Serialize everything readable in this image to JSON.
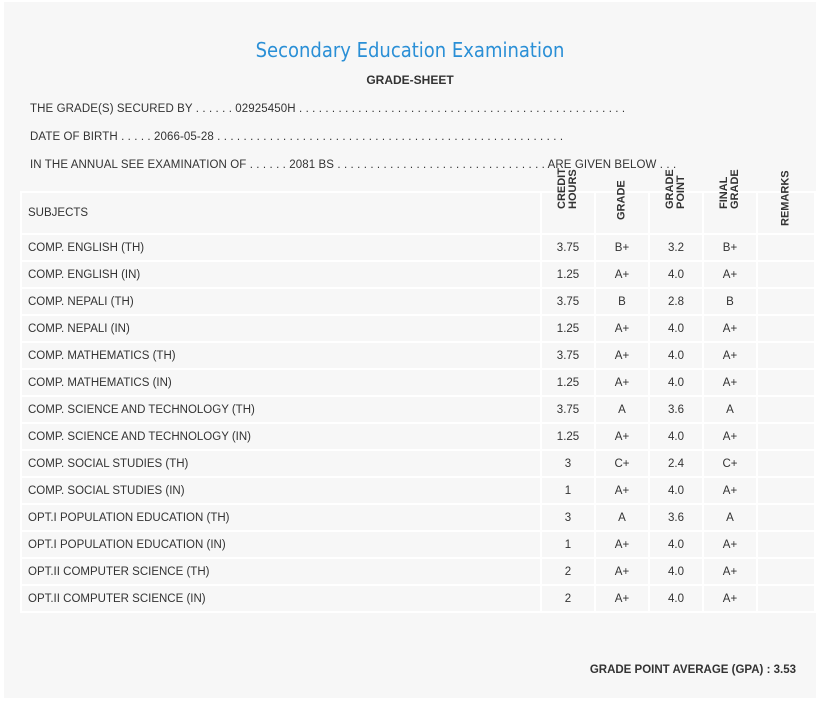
{
  "header": {
    "title": "Secondary Education Examination",
    "subtitle": "GRADE-SHEET"
  },
  "info": {
    "line1": "THE GRADE(S) SECURED BY . . . . . . 02925450H . . . . . . . . . . . . . . . . . . . . . . . . . . . . . . . . . . . . . . . . . . . . . . . . . .",
    "line2": "DATE OF BIRTH . . . . . 2066-05-28 . . . . . . . . . . . . . . . . . . . . . . . . . . . . . . . . . . . . . . . . . . . . . . . . . . . . .",
    "line3": "IN THE ANNUAL SEE EXAMINATION OF . . . . . . 2081 BS . . . . . . . . . . . . . . . . . . . . . . . . . . . . . . . . ARE GIVEN BELOW . . ."
  },
  "table": {
    "headers": {
      "subjects": "SUBJECTS",
      "credit": "CREDIT\nHOURS",
      "grade": "GRADE",
      "point": "GRADE\nPOINT",
      "final": "FINAL\nGRADE",
      "remarks": "REMARKS"
    },
    "rows": [
      [
        "COMP. ENGLISH (TH)",
        "3.75",
        "B+",
        "3.2",
        "B+"
      ],
      [
        "COMP. ENGLISH (IN)",
        "1.25",
        "A+",
        "4.0",
        "A+"
      ],
      [
        "COMP. NEPALI (TH)",
        "3.75",
        "B",
        "2.8",
        "B"
      ],
      [
        "COMP. NEPALI (IN)",
        "1.25",
        "A+",
        "4.0",
        "A+"
      ],
      [
        "COMP. MATHEMATICS (TH)",
        "3.75",
        "A+",
        "4.0",
        "A+"
      ],
      [
        "COMP. MATHEMATICS (IN)",
        "1.25",
        "A+",
        "4.0",
        "A+"
      ],
      [
        "COMP. SCIENCE AND TECHNOLOGY (TH)",
        "3.75",
        "A",
        "3.6",
        "A"
      ],
      [
        "COMP. SCIENCE AND TECHNOLOGY (IN)",
        "1.25",
        "A+",
        "4.0",
        "A+"
      ],
      [
        "COMP. SOCIAL STUDIES (TH)",
        "3",
        "C+",
        "2.4",
        "C+"
      ],
      [
        "COMP. SOCIAL STUDIES (IN)",
        "1",
        "A+",
        "4.0",
        "A+"
      ],
      [
        "OPT.I POPULATION EDUCATION (TH)",
        "3",
        "A",
        "3.6",
        "A"
      ],
      [
        "OPT.I POPULATION EDUCATION (IN)",
        "1",
        "A+",
        "4.0",
        "A+"
      ],
      [
        "OPT.II COMPUTER SCIENCE (TH)",
        "2",
        "A+",
        "4.0",
        "A+"
      ],
      [
        "OPT.II COMPUTER SCIENCE (IN)",
        "2",
        "A+",
        "4.0",
        "A+"
      ]
    ]
  },
  "gpa": "GRADE POINT AVERAGE (GPA) : 3.53"
}
